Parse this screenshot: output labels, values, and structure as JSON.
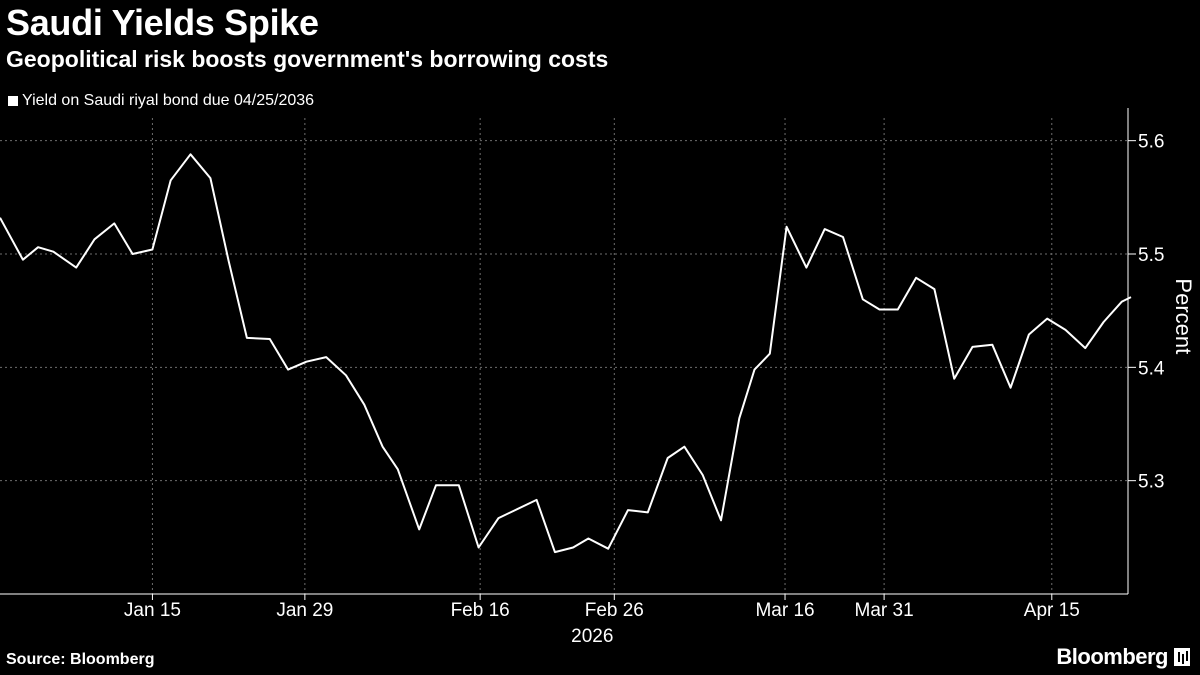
{
  "title": "Saudi Yields Spike",
  "subtitle": "Geopolitical risk boosts government's borrowing costs",
  "footer": {
    "source": "Source: Bloomberg",
    "brand": "Bloomberg"
  },
  "colors": {
    "background": "#000000",
    "line": "#ffffff",
    "grid": "#6e6e6e"
  },
  "chart_data": {
    "type": "line",
    "title": "Saudi Yields Spike",
    "subtitle": "Geopolitical risk boosts government's borrowing costs",
    "xlabel": "2026",
    "ylabel": "Percent",
    "ylim": [
      5.2,
      5.62
    ],
    "yticks": [
      5.3,
      5.4,
      5.5,
      5.6
    ],
    "ytick_labels": [
      "5.3",
      "5.4",
      "5.5",
      "5.6"
    ],
    "xlim": [
      0,
      74
    ],
    "xticks": [
      {
        "pos": 10,
        "label": "Jan 15"
      },
      {
        "pos": 20,
        "label": "Jan 29"
      },
      {
        "pos": 31.5,
        "label": "Feb 16"
      },
      {
        "pos": 40.3,
        "label": "Feb 26"
      },
      {
        "pos": 51.5,
        "label": "Mar 16"
      },
      {
        "pos": 58,
        "label": "Mar 31"
      },
      {
        "pos": 69,
        "label": "Apr 15"
      }
    ],
    "vgrid": [
      10,
      20,
      31.5,
      40.3,
      51.5,
      58,
      69
    ],
    "hgrid": [
      5.3,
      5.4,
      5.5,
      5.6
    ],
    "legend": [
      {
        "name": "Yield on Saudi riyal bond due 04/25/2036"
      }
    ],
    "legend_position": "top-left",
    "series": [
      {
        "name": "Yield on Saudi riyal bond due 04/25/2036",
        "x": [
          0,
          1.5,
          2.5,
          3.5,
          5,
          6.2,
          7.5,
          8.7,
          10,
          11.2,
          12.5,
          13.8,
          15,
          16.2,
          17.7,
          18.9,
          20.1,
          21.4,
          22.7,
          23.9,
          25.1,
          26.1,
          27.5,
          28.6,
          30.1,
          31.4,
          32.7,
          33.8,
          35.2,
          36.4,
          37.6,
          38.6,
          39.9,
          41.2,
          42.5,
          43.8,
          44.9,
          46.1,
          47.3,
          48.5,
          49.5,
          50.5,
          51.6,
          52.9,
          54.1,
          55.3,
          56.6,
          57.7,
          58.9,
          60.1,
          61.3,
          62.6,
          63.8,
          65.1,
          66.3,
          67.5,
          68.7,
          69.9,
          71.2,
          72.4,
          73.6,
          74.2
        ],
        "y": [
          5.532,
          5.495,
          5.506,
          5.502,
          5.488,
          5.513,
          5.527,
          5.5,
          5.504,
          5.565,
          5.588,
          5.567,
          5.494,
          5.426,
          5.425,
          5.398,
          5.405,
          5.409,
          5.393,
          5.367,
          5.33,
          5.31,
          5.257,
          5.296,
          5.296,
          5.241,
          5.267,
          5.274,
          5.283,
          5.237,
          5.241,
          5.249,
          5.24,
          5.274,
          5.272,
          5.32,
          5.33,
          5.305,
          5.265,
          5.355,
          5.398,
          5.412,
          5.524,
          5.488,
          5.522,
          5.515,
          5.46,
          5.451,
          5.451,
          5.479,
          5.469,
          5.39,
          5.418,
          5.42,
          5.382,
          5.429,
          5.443,
          5.433,
          5.417,
          5.44,
          5.458,
          5.462
        ]
      }
    ]
  }
}
